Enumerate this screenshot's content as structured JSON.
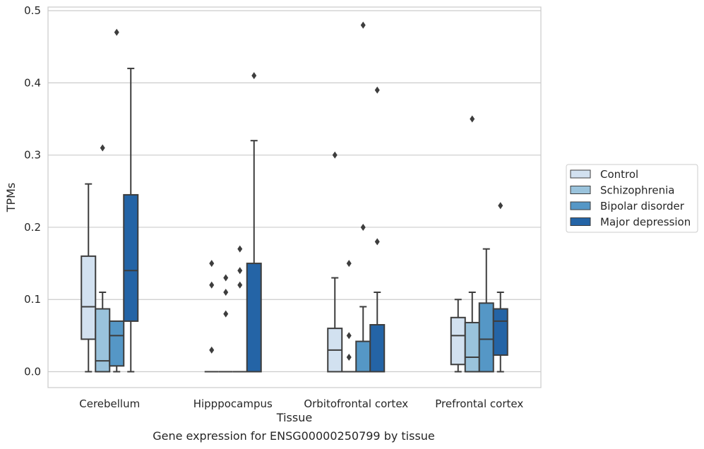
{
  "chart_data": {
    "type": "boxplot",
    "title": "",
    "xlabel": "Tissue",
    "ylabel": "TPMs",
    "caption": "Gene expression for ENSG00000250799 by tissue",
    "ylim": [
      -0.022,
      0.505
    ],
    "yticks": [
      0.0,
      0.1,
      0.2,
      0.3,
      0.4,
      0.5
    ],
    "ytick_labels": [
      "0.0",
      "0.1",
      "0.2",
      "0.3",
      "0.4",
      "0.5"
    ],
    "grid": "horizontal",
    "legend_position": "right",
    "categories": [
      "Cerebellum",
      "Hipppocampus",
      "Orbitofrontal cortex",
      "Prefrontal cortex"
    ],
    "series": [
      {
        "name": "Control",
        "color": "#d2e1f0",
        "boxes": [
          {
            "whislo": 0.0,
            "q1": 0.045,
            "med": 0.09,
            "q3": 0.16,
            "whishi": 0.26,
            "fliers": []
          },
          {
            "whislo": 0.0,
            "q1": 0.0,
            "med": 0.0,
            "q3": 0.0,
            "whishi": 0.0,
            "fliers": [
              0.15,
              0.12,
              0.03
            ]
          },
          {
            "whislo": 0.0,
            "q1": 0.0,
            "med": 0.03,
            "q3": 0.06,
            "whishi": 0.13,
            "fliers": [
              0.3
            ]
          },
          {
            "whislo": 0.0,
            "q1": 0.01,
            "med": 0.05,
            "q3": 0.075,
            "whishi": 0.1,
            "fliers": []
          }
        ]
      },
      {
        "name": "Schizophrenia",
        "color": "#9ac3dc",
        "boxes": [
          {
            "whislo": 0.0,
            "q1": 0.0,
            "med": 0.015,
            "q3": 0.087,
            "whishi": 0.11,
            "fliers": [
              0.31
            ]
          },
          {
            "whislo": 0.0,
            "q1": 0.0,
            "med": 0.0,
            "q3": 0.0,
            "whishi": 0.0,
            "fliers": [
              0.13,
              0.11,
              0.08
            ]
          },
          {
            "whislo": 0.0,
            "q1": 0.0,
            "med": 0.0,
            "q3": 0.0,
            "whishi": 0.0,
            "fliers": [
              0.15,
              0.05,
              0.02
            ]
          },
          {
            "whislo": 0.0,
            "q1": 0.0,
            "med": 0.02,
            "q3": 0.068,
            "whishi": 0.11,
            "fliers": [
              0.35
            ]
          }
        ]
      },
      {
        "name": "Bipolar disorder",
        "color": "#5597c6",
        "boxes": [
          {
            "whislo": 0.0,
            "q1": 0.008,
            "med": 0.05,
            "q3": 0.07,
            "whishi": 0.07,
            "fliers": [
              0.47
            ]
          },
          {
            "whislo": 0.0,
            "q1": 0.0,
            "med": 0.0,
            "q3": 0.0,
            "whishi": 0.0,
            "fliers": [
              0.17,
              0.14,
              0.12
            ]
          },
          {
            "whislo": 0.0,
            "q1": 0.0,
            "med": 0.0,
            "q3": 0.042,
            "whishi": 0.09,
            "fliers": [
              0.48,
              0.2
            ]
          },
          {
            "whislo": 0.0,
            "q1": 0.0,
            "med": 0.045,
            "q3": 0.095,
            "whishi": 0.17,
            "fliers": []
          }
        ]
      },
      {
        "name": "Major depression",
        "color": "#2464a6",
        "boxes": [
          {
            "whislo": 0.0,
            "q1": 0.07,
            "med": 0.14,
            "q3": 0.245,
            "whishi": 0.42,
            "fliers": []
          },
          {
            "whislo": 0.0,
            "q1": 0.0,
            "med": 0.0,
            "q3": 0.15,
            "whishi": 0.32,
            "fliers": [
              0.41
            ]
          },
          {
            "whislo": 0.0,
            "q1": 0.0,
            "med": 0.0,
            "q3": 0.065,
            "whishi": 0.11,
            "fliers": [
              0.39,
              0.18
            ]
          },
          {
            "whislo": 0.0,
            "q1": 0.023,
            "med": 0.07,
            "q3": 0.087,
            "whishi": 0.11,
            "fliers": [
              0.23
            ]
          }
        ]
      }
    ]
  }
}
